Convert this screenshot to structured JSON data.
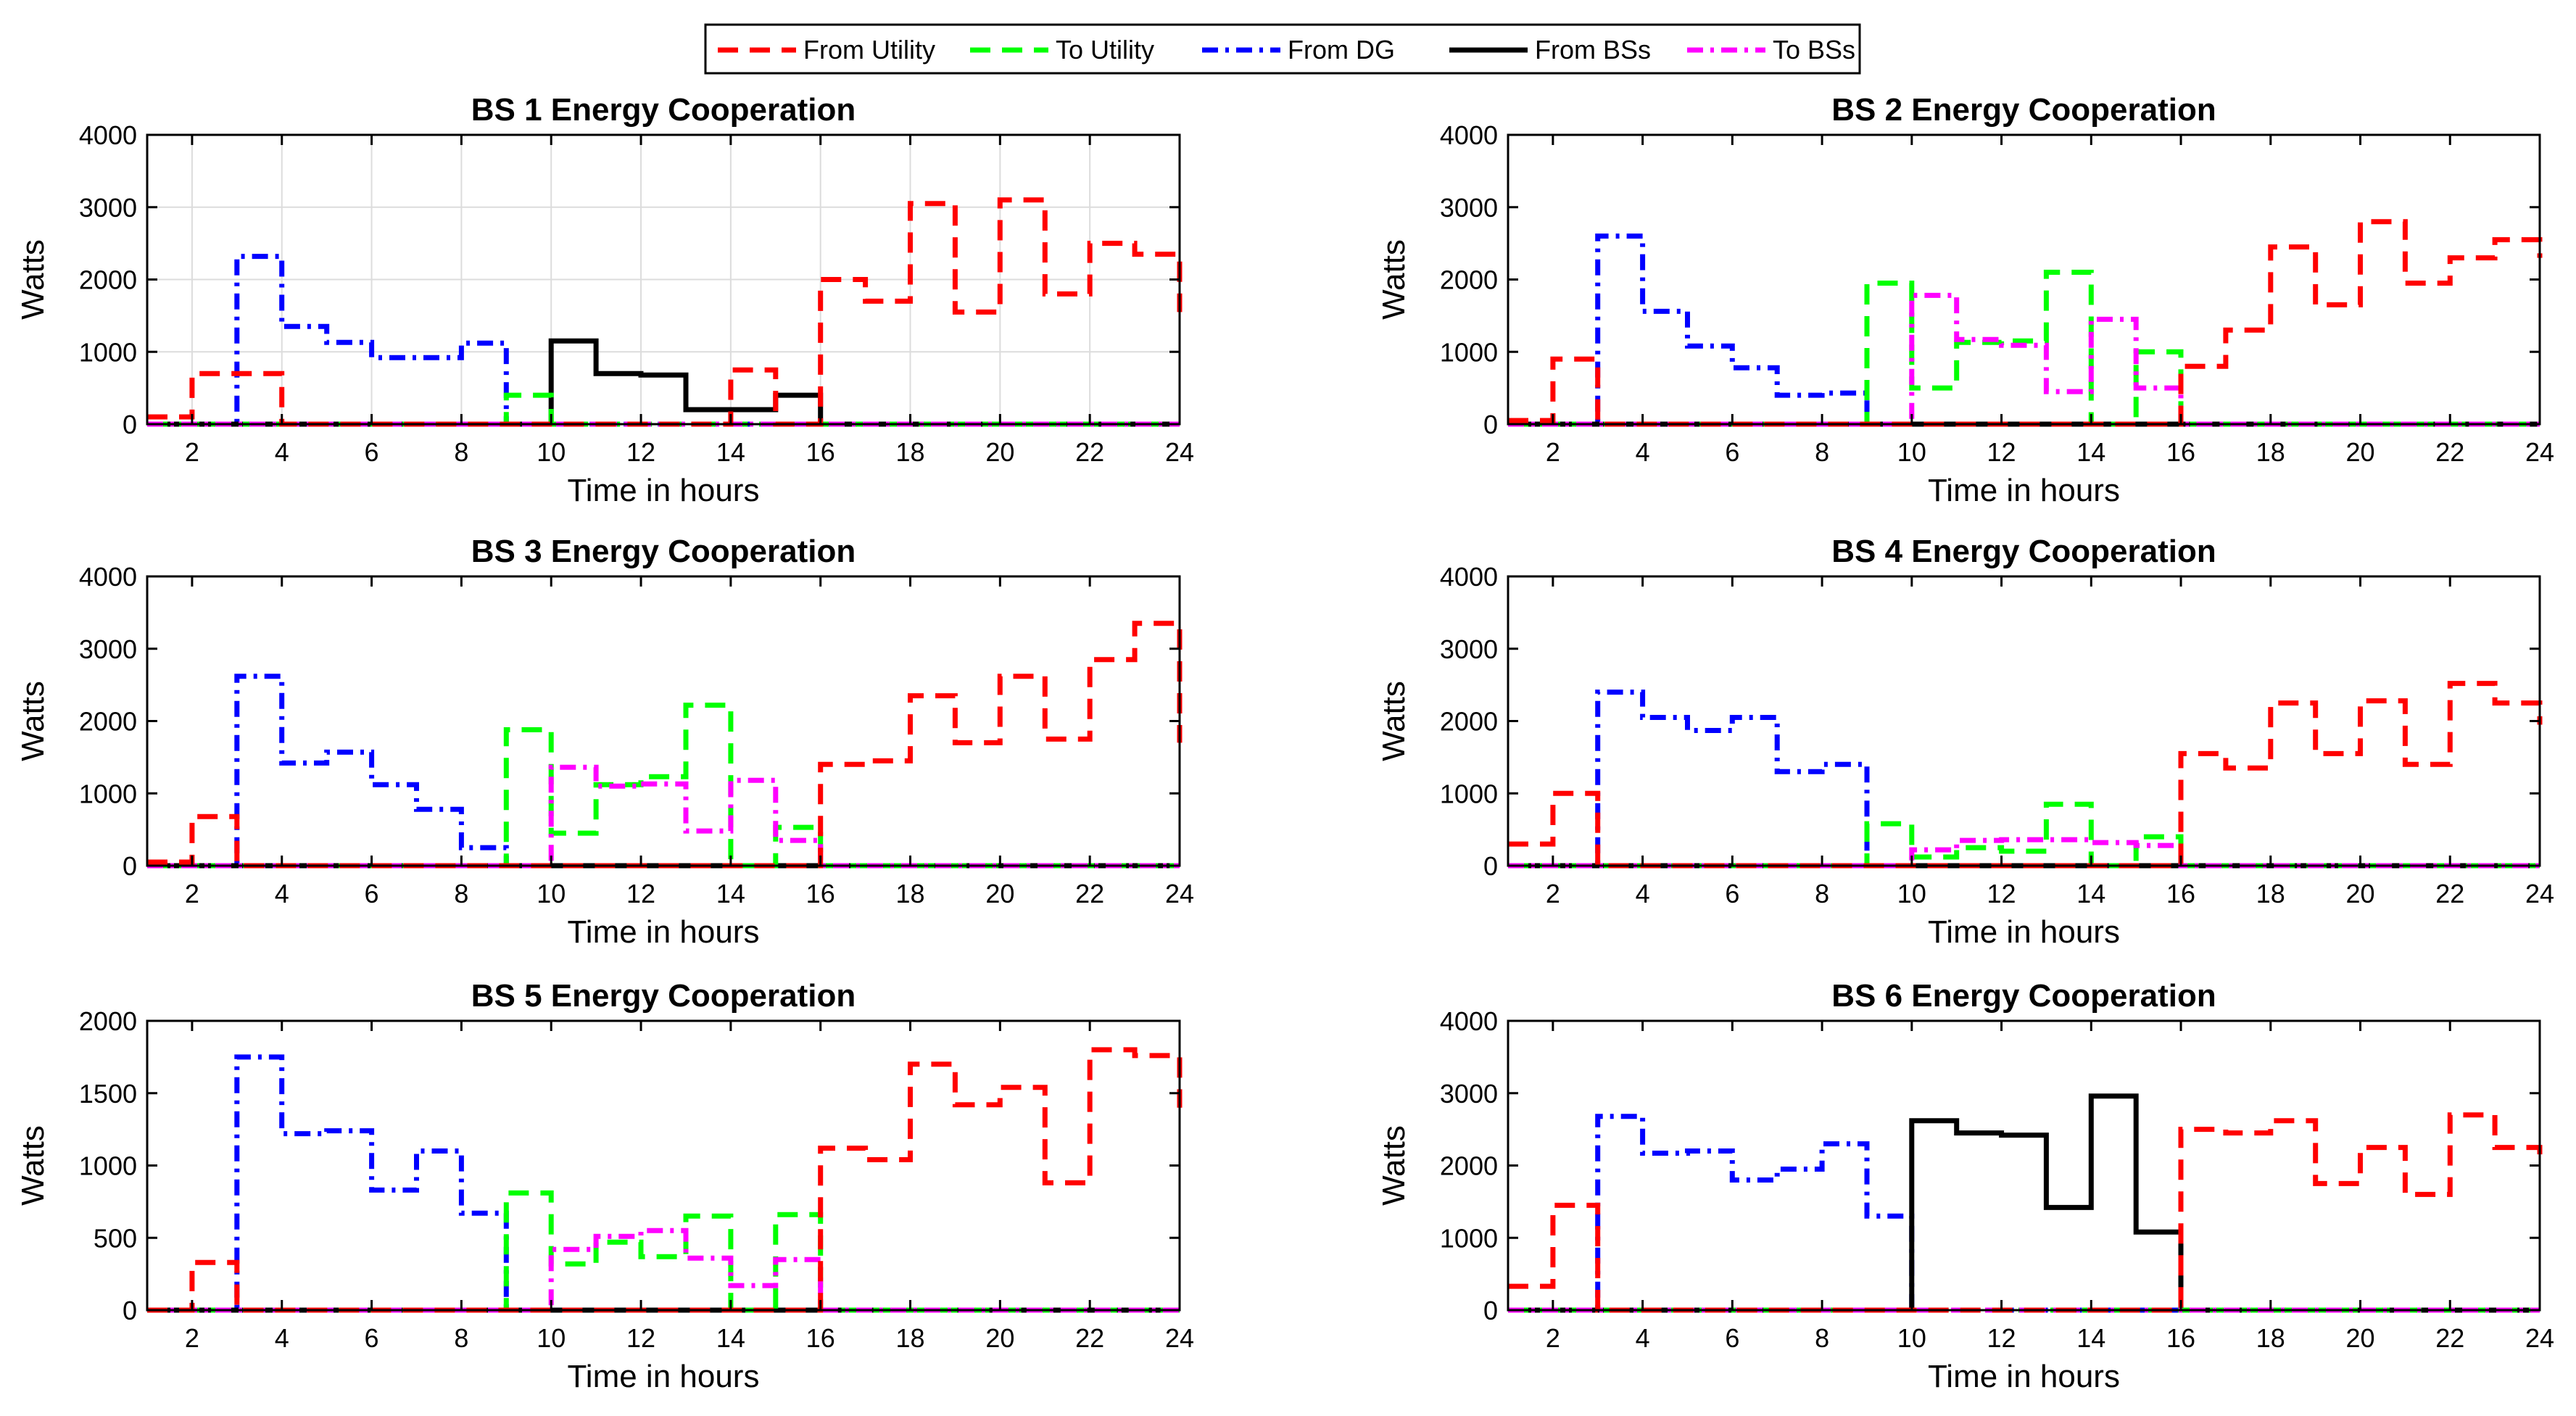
{
  "legend": [
    {
      "label": "From Utility",
      "color": "#ff0000",
      "dash": "dashed"
    },
    {
      "label": "To Utility",
      "color": "#00ff00",
      "dash": "dashed"
    },
    {
      "label": "From DG",
      "color": "#0000ff",
      "dash": "dashdot"
    },
    {
      "label": "From BSs",
      "color": "#000000",
      "dash": "solid"
    },
    {
      "label": "To BSs",
      "color": "#ff00ff",
      "dash": "dashdot"
    }
  ],
  "chart_data": [
    {
      "type": "line",
      "title": "BS 1 Energy Cooperation",
      "xlabel": "Time in hours",
      "ylabel": "Watts",
      "xlim": [
        1,
        24
      ],
      "ylim": [
        0,
        4000
      ],
      "xticks": [
        2,
        4,
        6,
        8,
        10,
        12,
        14,
        16,
        18,
        20,
        22,
        24
      ],
      "yticks": [
        0,
        1000,
        2000,
        3000,
        4000
      ],
      "grid": true,
      "step": true,
      "x": [
        1,
        2,
        3,
        4,
        5,
        6,
        7,
        8,
        9,
        10,
        11,
        12,
        13,
        14,
        15,
        16,
        17,
        18,
        19,
        20,
        21,
        22,
        23,
        24
      ],
      "series": [
        {
          "name": "From Utility",
          "values": [
            100,
            700,
            700,
            0,
            0,
            0,
            0,
            0,
            0,
            0,
            0,
            0,
            0,
            750,
            0,
            2000,
            1700,
            3050,
            1550,
            3100,
            1800,
            2500,
            2350,
            1550
          ]
        },
        {
          "name": "To Utility",
          "values": [
            0,
            0,
            0,
            0,
            0,
            0,
            0,
            0,
            400,
            0,
            0,
            0,
            0,
            0,
            0,
            0,
            0,
            0,
            0,
            0,
            0,
            0,
            0,
            0
          ]
        },
        {
          "name": "From DG",
          "values": [
            0,
            0,
            2320,
            1350,
            1130,
            920,
            920,
            1120,
            0,
            0,
            0,
            0,
            0,
            0,
            0,
            0,
            0,
            0,
            0,
            0,
            0,
            0,
            0,
            0
          ]
        },
        {
          "name": "From BSs",
          "values": [
            0,
            0,
            0,
            0,
            0,
            0,
            0,
            0,
            0,
            1150,
            700,
            680,
            200,
            200,
            400,
            0,
            0,
            0,
            0,
            0,
            0,
            0,
            0,
            0
          ]
        },
        {
          "name": "To BSs",
          "values": [
            0,
            0,
            0,
            0,
            0,
            0,
            0,
            0,
            0,
            0,
            0,
            0,
            0,
            0,
            0,
            0,
            0,
            0,
            0,
            0,
            0,
            0,
            0,
            0
          ]
        }
      ]
    },
    {
      "type": "line",
      "title": "BS 2 Energy Cooperation",
      "xlabel": "Time in hours",
      "ylabel": "Watts",
      "xlim": [
        1,
        24
      ],
      "ylim": [
        0,
        4000
      ],
      "xticks": [
        2,
        4,
        6,
        8,
        10,
        12,
        14,
        16,
        18,
        20,
        22,
        24
      ],
      "yticks": [
        0,
        1000,
        2000,
        3000,
        4000
      ],
      "grid": false,
      "step": true,
      "x": [
        1,
        2,
        3,
        4,
        5,
        6,
        7,
        8,
        9,
        10,
        11,
        12,
        13,
        14,
        15,
        16,
        17,
        18,
        19,
        20,
        21,
        22,
        23,
        24
      ],
      "series": [
        {
          "name": "From Utility",
          "values": [
            50,
            900,
            0,
            0,
            0,
            0,
            0,
            0,
            0,
            0,
            0,
            0,
            0,
            0,
            0,
            800,
            1300,
            2450,
            1650,
            2800,
            1950,
            2300,
            2550,
            2300
          ]
        },
        {
          "name": "To Utility",
          "values": [
            0,
            0,
            0,
            0,
            0,
            0,
            0,
            0,
            1950,
            500,
            1130,
            1150,
            2100,
            0,
            1000,
            0,
            0,
            0,
            0,
            0,
            0,
            0,
            0,
            0
          ]
        },
        {
          "name": "From DG",
          "values": [
            0,
            0,
            2600,
            1560,
            1080,
            780,
            400,
            430,
            0,
            0,
            0,
            0,
            0,
            0,
            0,
            0,
            0,
            0,
            0,
            0,
            0,
            0,
            0,
            0
          ]
        },
        {
          "name": "From BSs",
          "values": [
            0,
            0,
            0,
            0,
            0,
            0,
            0,
            0,
            0,
            0,
            0,
            0,
            0,
            0,
            0,
            0,
            0,
            0,
            0,
            0,
            0,
            0,
            0,
            0
          ]
        },
        {
          "name": "To BSs",
          "values": [
            0,
            0,
            0,
            0,
            0,
            0,
            0,
            0,
            0,
            1780,
            1170,
            1090,
            450,
            1450,
            500,
            0,
            0,
            0,
            0,
            0,
            0,
            0,
            0,
            0
          ]
        }
      ]
    },
    {
      "type": "line",
      "title": "BS 3 Energy Cooperation",
      "xlabel": "Time in hours",
      "ylabel": "Watts",
      "xlim": [
        1,
        24
      ],
      "ylim": [
        0,
        4000
      ],
      "xticks": [
        2,
        4,
        6,
        8,
        10,
        12,
        14,
        16,
        18,
        20,
        22,
        24
      ],
      "yticks": [
        0,
        1000,
        2000,
        3000,
        4000
      ],
      "grid": false,
      "step": true,
      "x": [
        1,
        2,
        3,
        4,
        5,
        6,
        7,
        8,
        9,
        10,
        11,
        12,
        13,
        14,
        15,
        16,
        17,
        18,
        19,
        20,
        21,
        22,
        23,
        24
      ],
      "series": [
        {
          "name": "From Utility",
          "values": [
            50,
            680,
            0,
            0,
            0,
            0,
            0,
            0,
            0,
            0,
            0,
            0,
            0,
            0,
            0,
            1400,
            1450,
            2350,
            1700,
            2620,
            1750,
            2850,
            3350,
            1700
          ]
        },
        {
          "name": "To Utility",
          "values": [
            0,
            0,
            0,
            0,
            0,
            0,
            0,
            0,
            1880,
            450,
            1120,
            1230,
            2220,
            0,
            530,
            0,
            0,
            0,
            0,
            0,
            0,
            0,
            0,
            0
          ]
        },
        {
          "name": "From DG",
          "values": [
            0,
            0,
            2620,
            1420,
            1570,
            1120,
            780,
            250,
            0,
            0,
            0,
            0,
            0,
            0,
            0,
            0,
            0,
            0,
            0,
            0,
            0,
            0,
            0,
            0
          ]
        },
        {
          "name": "From BSs",
          "values": [
            0,
            0,
            0,
            0,
            0,
            0,
            0,
            0,
            0,
            0,
            0,
            0,
            0,
            0,
            0,
            0,
            0,
            0,
            0,
            0,
            0,
            0,
            0,
            0
          ]
        },
        {
          "name": "To BSs",
          "values": [
            0,
            0,
            0,
            0,
            0,
            0,
            0,
            0,
            0,
            1360,
            1100,
            1130,
            480,
            1180,
            350,
            0,
            0,
            0,
            0,
            0,
            0,
            0,
            0,
            0
          ]
        }
      ]
    },
    {
      "type": "line",
      "title": "BS 4 Energy Cooperation",
      "xlabel": "Time in hours",
      "ylabel": "Watts",
      "xlim": [
        1,
        24
      ],
      "ylim": [
        0,
        4000
      ],
      "xticks": [
        2,
        4,
        6,
        8,
        10,
        12,
        14,
        16,
        18,
        20,
        22,
        24
      ],
      "yticks": [
        0,
        1000,
        2000,
        3000,
        4000
      ],
      "grid": false,
      "step": true,
      "x": [
        1,
        2,
        3,
        4,
        5,
        6,
        7,
        8,
        9,
        10,
        11,
        12,
        13,
        14,
        15,
        16,
        17,
        18,
        19,
        20,
        21,
        22,
        23,
        24
      ],
      "series": [
        {
          "name": "From Utility",
          "values": [
            300,
            1000,
            0,
            0,
            0,
            0,
            0,
            0,
            0,
            0,
            0,
            0,
            0,
            0,
            0,
            1550,
            1350,
            2250,
            1550,
            2280,
            1400,
            2520,
            2250,
            1950
          ]
        },
        {
          "name": "To Utility",
          "values": [
            0,
            0,
            0,
            0,
            0,
            0,
            0,
            0,
            580,
            120,
            250,
            200,
            850,
            0,
            400,
            0,
            0,
            0,
            0,
            0,
            0,
            0,
            0,
            0
          ]
        },
        {
          "name": "From DG",
          "values": [
            0,
            0,
            2400,
            2050,
            1870,
            2050,
            1300,
            1400,
            0,
            0,
            0,
            0,
            0,
            0,
            0,
            0,
            0,
            0,
            0,
            0,
            0,
            0,
            0,
            0
          ]
        },
        {
          "name": "From BSs",
          "values": [
            0,
            0,
            0,
            0,
            0,
            0,
            0,
            0,
            0,
            0,
            0,
            0,
            0,
            0,
            0,
            0,
            0,
            0,
            0,
            0,
            0,
            0,
            0,
            0
          ]
        },
        {
          "name": "To BSs",
          "values": [
            0,
            0,
            0,
            0,
            0,
            0,
            0,
            0,
            0,
            220,
            350,
            360,
            360,
            320,
            280,
            0,
            0,
            0,
            0,
            0,
            0,
            0,
            0,
            0
          ]
        }
      ]
    },
    {
      "type": "line",
      "title": "BS 5 Energy Cooperation",
      "xlabel": "Time in hours",
      "ylabel": "Watts",
      "xlim": [
        1,
        24
      ],
      "ylim": [
        0,
        2000
      ],
      "xticks": [
        2,
        4,
        6,
        8,
        10,
        12,
        14,
        16,
        18,
        20,
        22,
        24
      ],
      "yticks": [
        0,
        500,
        1000,
        1500,
        2000
      ],
      "grid": false,
      "step": true,
      "x": [
        1,
        2,
        3,
        4,
        5,
        6,
        7,
        8,
        9,
        10,
        11,
        12,
        13,
        14,
        15,
        16,
        17,
        18,
        19,
        20,
        21,
        22,
        23,
        24
      ],
      "series": [
        {
          "name": "From Utility",
          "values": [
            0,
            330,
            0,
            0,
            0,
            0,
            0,
            0,
            0,
            0,
            0,
            0,
            0,
            0,
            0,
            1120,
            1040,
            1700,
            1420,
            1540,
            880,
            1800,
            1760,
            1400
          ]
        },
        {
          "name": "To Utility",
          "values": [
            0,
            0,
            0,
            0,
            0,
            0,
            0,
            0,
            810,
            320,
            470,
            370,
            650,
            0,
            660,
            0,
            0,
            0,
            0,
            0,
            0,
            0,
            0,
            0
          ]
        },
        {
          "name": "From DG",
          "values": [
            0,
            0,
            1750,
            1220,
            1240,
            830,
            1100,
            670,
            0,
            0,
            0,
            0,
            0,
            0,
            0,
            0,
            0,
            0,
            0,
            0,
            0,
            0,
            0,
            0
          ]
        },
        {
          "name": "From BSs",
          "values": [
            0,
            0,
            0,
            0,
            0,
            0,
            0,
            0,
            0,
            0,
            0,
            0,
            0,
            0,
            0,
            0,
            0,
            0,
            0,
            0,
            0,
            0,
            0,
            0
          ]
        },
        {
          "name": "To BSs",
          "values": [
            0,
            0,
            0,
            0,
            0,
            0,
            0,
            0,
            0,
            420,
            510,
            550,
            360,
            170,
            350,
            0,
            0,
            0,
            0,
            0,
            0,
            0,
            0,
            0
          ]
        }
      ]
    },
    {
      "type": "line",
      "title": "BS 6 Energy Cooperation",
      "xlabel": "Time in hours",
      "ylabel": "Watts",
      "xlim": [
        1,
        24
      ],
      "ylim": [
        0,
        4000
      ],
      "xticks": [
        2,
        4,
        6,
        8,
        10,
        12,
        14,
        16,
        18,
        20,
        22,
        24
      ],
      "yticks": [
        0,
        1000,
        2000,
        3000,
        4000
      ],
      "grid": false,
      "step": true,
      "x": [
        1,
        2,
        3,
        4,
        5,
        6,
        7,
        8,
        9,
        10,
        11,
        12,
        13,
        14,
        15,
        16,
        17,
        18,
        19,
        20,
        21,
        22,
        23,
        24
      ],
      "series": [
        {
          "name": "From Utility",
          "values": [
            330,
            1450,
            0,
            0,
            0,
            0,
            0,
            0,
            0,
            0,
            0,
            0,
            0,
            0,
            0,
            2500,
            2450,
            2620,
            1750,
            2250,
            1600,
            2700,
            2250,
            2100
          ]
        },
        {
          "name": "To Utility",
          "values": [
            0,
            0,
            0,
            0,
            0,
            0,
            0,
            0,
            0,
            0,
            0,
            0,
            0,
            0,
            0,
            0,
            0,
            0,
            0,
            0,
            0,
            0,
            0,
            0
          ]
        },
        {
          "name": "From DG",
          "values": [
            0,
            0,
            2680,
            2170,
            2200,
            1800,
            1950,
            2300,
            1300,
            0,
            0,
            0,
            0,
            0,
            0,
            0,
            0,
            0,
            0,
            0,
            0,
            0,
            0,
            0
          ]
        },
        {
          "name": "From BSs",
          "values": [
            0,
            0,
            0,
            0,
            0,
            0,
            0,
            0,
            0,
            2620,
            2450,
            2420,
            1420,
            2960,
            1080,
            0,
            0,
            0,
            0,
            0,
            0,
            0,
            0,
            0
          ]
        },
        {
          "name": "To BSs",
          "values": [
            0,
            0,
            0,
            0,
            0,
            0,
            0,
            0,
            0,
            0,
            0,
            0,
            0,
            0,
            0,
            0,
            0,
            0,
            0,
            0,
            0,
            0,
            0,
            0
          ]
        }
      ]
    }
  ]
}
